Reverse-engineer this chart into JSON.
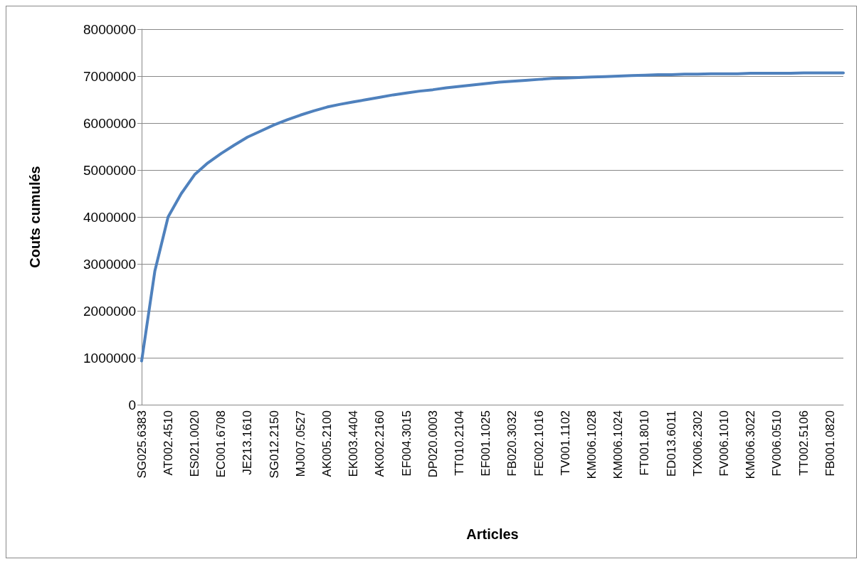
{
  "chart_data": {
    "type": "line",
    "xlabel": "Articles",
    "ylabel": "Couts cumulés",
    "categories": [
      "SG025.6383",
      null,
      "AT002.4510",
      null,
      "ES021.0020",
      null,
      "EC001.6708",
      null,
      "JE213.1610",
      null,
      "SG012.2150",
      null,
      "MJ007.0527",
      null,
      "AK005.2100",
      null,
      "EK003.4404",
      null,
      "AK002.2160",
      null,
      "EF004.3015",
      null,
      "DP020.0003",
      null,
      "TT010.2104",
      null,
      "EF001.1025",
      null,
      "FB020.3032",
      null,
      "FE002.1016",
      null,
      "TV001.1102",
      null,
      "KM006.1028",
      null,
      "KM006.1024",
      null,
      "FT001.8010",
      null,
      "ED013.6011",
      null,
      "TX006.2302",
      null,
      "FV006.1010",
      null,
      "KM006.3022",
      null,
      "FV006.0510",
      null,
      "TT002.5106",
      null,
      "FB001.0820",
      null
    ],
    "series": [
      {
        "color": "#4f81bd",
        "values": [
          930000,
          2850000,
          4000000,
          4500000,
          4900000,
          5150000,
          5350000,
          5530000,
          5700000,
          5830000,
          5960000,
          6070000,
          6170000,
          6260000,
          6340000,
          6400000,
          6450000,
          6500000,
          6550000,
          6600000,
          6640000,
          6680000,
          6710000,
          6750000,
          6780000,
          6810000,
          6840000,
          6870000,
          6890000,
          6910000,
          6930000,
          6950000,
          6960000,
          6970000,
          6980000,
          6990000,
          7000000,
          7010000,
          7020000,
          7030000,
          7030000,
          7040000,
          7040000,
          7050000,
          7050000,
          7050000,
          7060000,
          7060000,
          7060000,
          7060000,
          7070000,
          7070000,
          7070000,
          7070000
        ]
      }
    ],
    "ylim": [
      0,
      8000000
    ],
    "yticks": [
      0,
      1000000,
      2000000,
      3000000,
      4000000,
      5000000,
      6000000,
      7000000,
      8000000
    ],
    "grid": "y",
    "legend": false,
    "marker": "none",
    "line_style": "solid"
  }
}
